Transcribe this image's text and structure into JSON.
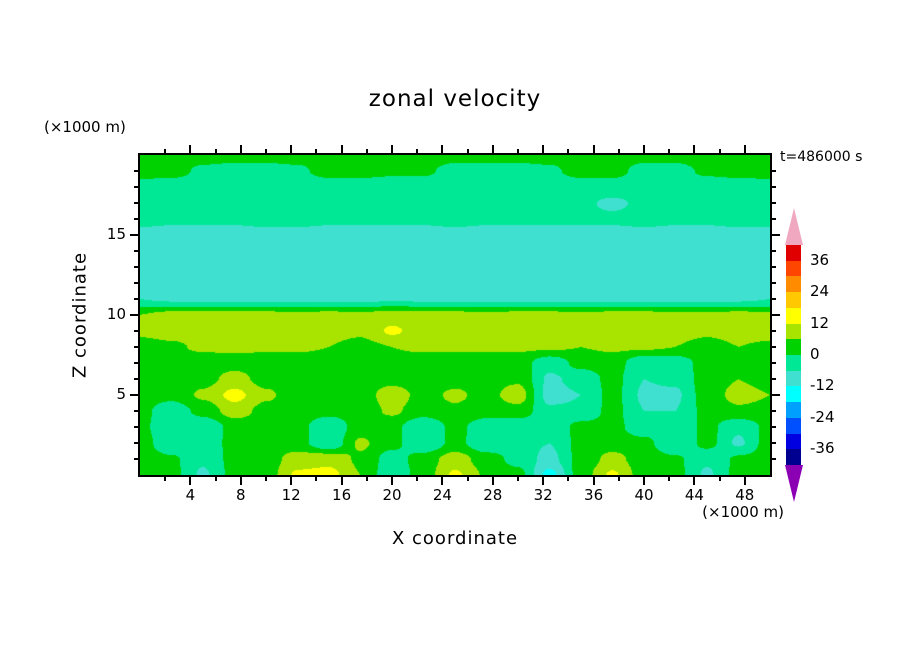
{
  "title": "zonal velocity",
  "time_label": "t=486000 s",
  "axes": {
    "x": {
      "label": "X coordinate",
      "units": "(×1000 m)",
      "min": 0,
      "max": 50,
      "major_ticks": [
        4,
        8,
        12,
        16,
        20,
        24,
        28,
        32,
        36,
        40,
        44,
        48
      ],
      "minor_ticks": [
        2,
        6,
        10,
        14,
        18,
        22,
        26,
        30,
        34,
        38,
        42,
        46
      ]
    },
    "z": {
      "label": "Z coordinate",
      "units": "(×1000 m)",
      "min": 0,
      "max": 20,
      "major_ticks": [
        5,
        10,
        15
      ],
      "minor_ticks": [
        1,
        2,
        3,
        4,
        6,
        7,
        8,
        9,
        11,
        12,
        13,
        14,
        16,
        17,
        18,
        19
      ]
    }
  },
  "colorbar": {
    "min": -42,
    "max": 42,
    "step": 6,
    "labels": [
      36,
      24,
      12,
      0,
      -12,
      -24,
      -36
    ],
    "segment_colors_top_to_bottom": [
      "#e00000",
      "#ff4600",
      "#ff8c00",
      "#ffc800",
      "#ffff00",
      "#a8e400",
      "#00d200",
      "#00e896",
      "#40e0d0",
      "#00ffff",
      "#00a0ff",
      "#0050ff",
      "#0000e0",
      "#000090"
    ],
    "arrow_top_color": "#f0a8c0",
    "arrow_bottom_color": "#8c00b4"
  },
  "chart_data": {
    "type": "heatmap",
    "subtype": "filled-contour",
    "title": "zonal velocity",
    "annotation": "t=486000 s",
    "xlabel": "X coordinate (×1000 m)",
    "ylabel": "Z coordinate (×1000 m)",
    "xlim": [
      0,
      50
    ],
    "zlim": [
      0,
      20
    ],
    "contour_interval": 6,
    "value_range_of_scale": [
      -42,
      42
    ],
    "legend_position": "right-colorbar",
    "grid": "off",
    "x": [
      0,
      2.5,
      5,
      7.5,
      10,
      12.5,
      15,
      17.5,
      20,
      22.5,
      25,
      27.5,
      30,
      32.5,
      35,
      37.5,
      40,
      42.5,
      45,
      47.5,
      50
    ],
    "z": [
      0,
      1,
      2,
      3,
      4,
      5,
      6,
      7,
      8,
      9,
      10,
      11,
      12,
      13,
      14,
      15,
      16,
      17,
      18,
      19,
      20
    ],
    "values_rows_z0_to_z20": [
      [
        3,
        2,
        -7,
        2,
        3,
        13,
        14,
        6,
        -5,
        3,
        13,
        5,
        2,
        -14,
        3,
        13,
        3,
        2,
        -7,
        2,
        3
      ],
      [
        3,
        1,
        -5,
        2,
        3,
        9,
        10,
        5,
        -3,
        3,
        9,
        3,
        -2,
        -8,
        2,
        8,
        3,
        1,
        -5,
        1,
        3
      ],
      [
        3,
        -5,
        -4,
        2,
        3,
        2,
        -5,
        7,
        2,
        -6,
        2,
        -5,
        -4,
        -6,
        2,
        3,
        2,
        -6,
        2,
        -7,
        3
      ],
      [
        2,
        -6,
        -5,
        2,
        3,
        2,
        -5,
        3,
        2,
        -6,
        2,
        -4,
        -5,
        -5,
        2,
        2,
        -4,
        -6,
        2,
        -5,
        2
      ],
      [
        2,
        -4,
        2,
        9,
        4,
        3,
        2,
        3,
        7,
        3,
        5,
        3,
        4,
        -5,
        -5,
        2,
        -6,
        -6,
        2,
        5,
        4
      ],
      [
        3,
        2,
        7,
        14,
        7,
        3,
        4,
        3,
        9,
        4,
        7,
        4,
        9,
        -8,
        -6,
        2,
        -7,
        -7,
        3,
        8,
        6
      ],
      [
        3,
        2,
        4,
        8,
        4,
        3,
        3,
        3,
        4,
        3,
        4,
        4,
        5,
        -7,
        -4,
        2,
        -6,
        -5,
        3,
        6,
        4
      ],
      [
        3,
        3,
        3,
        4,
        3,
        3,
        3,
        3,
        4,
        3,
        3,
        3,
        3,
        -4,
        2,
        3,
        -5,
        -4,
        3,
        4,
        4
      ],
      [
        4,
        5,
        7,
        7,
        7,
        7,
        6,
        4,
        6,
        7,
        7,
        7,
        7,
        7,
        6,
        7,
        7,
        6,
        4,
        6,
        5
      ],
      [
        7,
        8,
        9,
        9,
        8,
        8,
        8,
        7,
        13,
        9,
        8,
        8,
        9,
        8,
        8,
        9,
        8,
        8,
        7,
        8,
        8
      ],
      [
        6,
        8,
        8,
        8,
        8,
        7,
        8,
        7,
        9,
        8,
        8,
        7,
        8,
        8,
        7,
        8,
        8,
        7,
        7,
        8,
        7
      ],
      [
        -6,
        -7,
        -7,
        -7,
        -7,
        -7,
        -7,
        -7,
        -7,
        -7,
        -7,
        -7,
        -7,
        -7,
        -7,
        -7,
        -7,
        -7,
        -7,
        -7,
        -6
      ],
      [
        -9,
        -9,
        -9,
        -9,
        -9,
        -9,
        -9,
        -9,
        -9,
        -9,
        -9,
        -9,
        -9,
        -9,
        -9,
        -9,
        -9,
        -9,
        -9,
        -9,
        -9
      ],
      [
        -9,
        -9,
        -9,
        -9,
        -9,
        -9,
        -9,
        -9,
        -9,
        -9,
        -9,
        -9,
        -9,
        -9,
        -9,
        -9,
        -9,
        -9,
        -9,
        -9,
        -9
      ],
      [
        -9,
        -9,
        -9,
        -9,
        -9,
        -9,
        -9,
        -9,
        -9,
        -9,
        -9,
        -9,
        -9,
        -9,
        -9,
        -9,
        -9,
        -9,
        -9,
        -9,
        -9
      ],
      [
        -8,
        -8,
        -8,
        -8,
        -8,
        -8,
        -8,
        -8,
        -8,
        -8,
        -8,
        -8,
        -8,
        -8,
        -8,
        -8,
        -8,
        -8,
        -8,
        -8,
        -8
      ],
      [
        -4,
        -5,
        -5,
        -5,
        -4,
        -4,
        -5,
        -5,
        -5,
        -5,
        -4,
        -5,
        -5,
        -5,
        -5,
        -5,
        -4,
        -5,
        -5,
        -4,
        -4
      ],
      [
        -3,
        -3,
        -3,
        -3,
        -3,
        -3,
        -3,
        -3,
        -3,
        -3,
        -3,
        -3,
        -3,
        -3,
        -5,
        -7,
        -5,
        -3,
        -3,
        -3,
        -3
      ],
      [
        -2,
        -3,
        -3,
        -3,
        -3,
        -3,
        -3,
        -3,
        -3,
        -3,
        -3,
        -3,
        -3,
        -3,
        -3,
        -3,
        -3,
        -3,
        -3,
        -3,
        -2
      ],
      [
        2,
        2,
        -1,
        -2,
        -2,
        -1,
        2,
        2,
        1,
        1,
        -2,
        -2,
        -2,
        -1,
        2,
        2,
        -2,
        -2,
        1,
        2,
        2
      ],
      [
        3,
        3,
        2,
        2,
        2,
        2,
        3,
        3,
        3,
        3,
        2,
        2,
        2,
        2,
        3,
        3,
        2,
        2,
        3,
        3,
        3
      ]
    ]
  }
}
